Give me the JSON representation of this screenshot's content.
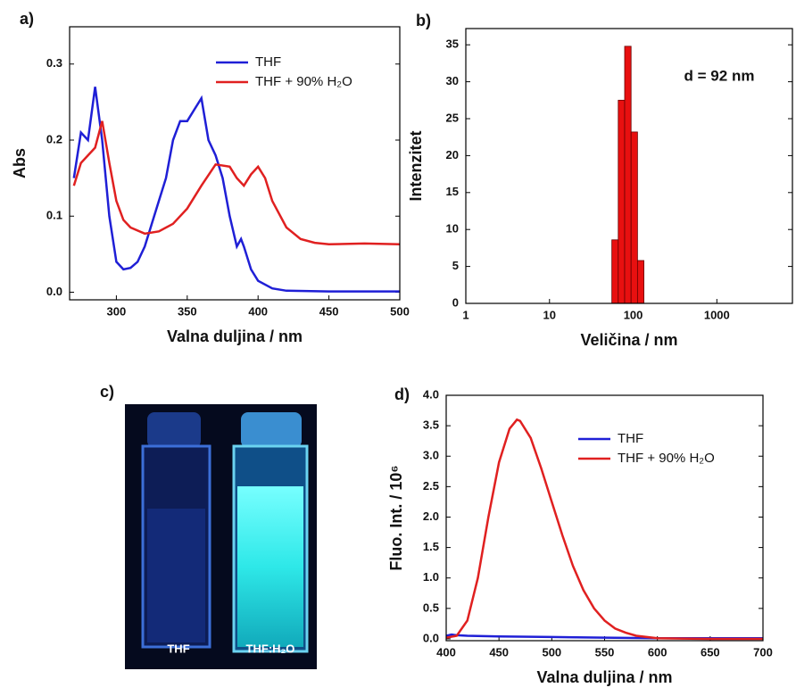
{
  "chart_data": [
    {
      "type": "line",
      "panel_label": "a)",
      "x_label": "Valna duljina / nm",
      "y_label": "Abs",
      "xlim": [
        267,
        500
      ],
      "ylim": [
        -0.01,
        0.349
      ],
      "xticks": [
        300,
        350,
        400,
        450,
        500
      ],
      "yticks": [
        {
          "value": 0,
          "label": "0.0"
        },
        0.1,
        0.2,
        0.3
      ],
      "series": [
        {
          "name": "THF",
          "color": "#1f1fd6",
          "x": [
            270,
            275,
            280,
            285,
            290,
            295,
            300,
            305,
            310,
            315,
            320,
            325,
            330,
            335,
            340,
            345,
            350,
            355,
            360,
            365,
            370,
            375,
            380,
            385,
            388,
            390,
            395,
            400,
            410,
            420,
            450,
            500
          ],
          "values": [
            0.15,
            0.21,
            0.2,
            0.27,
            0.2,
            0.1,
            0.04,
            0.03,
            0.032,
            0.04,
            0.06,
            0.09,
            0.12,
            0.15,
            0.2,
            0.225,
            0.225,
            0.24,
            0.255,
            0.2,
            0.18,
            0.15,
            0.1,
            0.06,
            0.07,
            0.06,
            0.03,
            0.015,
            0.005,
            0.002,
            0.001,
            0.001
          ]
        },
        {
          "name": "THF + 90% H₂O",
          "color": "#e02020",
          "x": [
            270,
            275,
            280,
            285,
            290,
            295,
            300,
            305,
            310,
            320,
            330,
            340,
            350,
            360,
            370,
            380,
            385,
            390,
            395,
            400,
            405,
            410,
            420,
            430,
            440,
            450,
            475,
            500
          ],
          "values": [
            0.14,
            0.17,
            0.18,
            0.19,
            0.225,
            0.17,
            0.12,
            0.095,
            0.085,
            0.077,
            0.08,
            0.09,
            0.11,
            0.14,
            0.168,
            0.165,
            0.15,
            0.14,
            0.155,
            0.165,
            0.15,
            0.12,
            0.085,
            0.07,
            0.065,
            0.063,
            0.064,
            0.063
          ]
        }
      ]
    },
    {
      "type": "histogram",
      "panel_label": "b)",
      "x_label": "Veličina / nm",
      "y_label": "Intenzitet",
      "annotation": "d = 92 nm",
      "log_x": true,
      "xlim": [
        1,
        8000
      ],
      "ylim": [
        0,
        37.2
      ],
      "xticks": [
        1,
        10,
        100,
        1000
      ],
      "yticks": [
        0,
        5,
        10,
        15,
        20,
        25,
        30,
        35
      ],
      "color": "#e81010",
      "bins": [
        55.6,
        66.3,
        79.1,
        94.4,
        112.6,
        134.3
      ],
      "values": [
        8.6,
        27.5,
        34.8,
        23.2,
        5.8
      ]
    },
    {
      "type": "line",
      "panel_label": "d)",
      "x_label": "Valna duljina / nm",
      "y_label": "Fluo. Int. / 10⁶",
      "xlim": [
        400,
        700
      ],
      "ylim": [
        -0.03,
        4.0
      ],
      "xticks": [
        400,
        450,
        500,
        550,
        600,
        650,
        700
      ],
      "yticks": [
        {
          "value": 0,
          "label": "0.0"
        },
        0.5,
        {
          "value": 1,
          "label": "1.0"
        },
        1.5,
        {
          "value": 2,
          "label": "2.0"
        },
        2.5,
        {
          "value": 3,
          "label": "3.0"
        },
        3.5,
        {
          "value": 4,
          "label": "4.0"
        }
      ],
      "series": [
        {
          "name": "THF",
          "color": "#1f1fd6",
          "x": [
            400,
            405,
            410,
            420,
            450,
            500,
            550,
            600,
            650,
            700
          ],
          "values": [
            0.05,
            0.07,
            0.06,
            0.05,
            0.04,
            0.03,
            0.02,
            0.01,
            0.01,
            0.01
          ]
        },
        {
          "name": "THF + 90% H₂O",
          "color": "#e02020",
          "x": [
            400,
            410,
            420,
            430,
            440,
            450,
            460,
            467,
            470,
            480,
            490,
            500,
            510,
            520,
            530,
            540,
            550,
            560,
            570,
            580,
            590,
            600,
            650,
            700
          ],
          "values": [
            0.02,
            0.05,
            0.3,
            1.0,
            2.0,
            2.9,
            3.45,
            3.6,
            3.58,
            3.3,
            2.8,
            2.25,
            1.7,
            1.2,
            0.8,
            0.5,
            0.3,
            0.17,
            0.1,
            0.05,
            0.03,
            0.01,
            0,
            0
          ]
        }
      ]
    }
  ],
  "photo": {
    "panel_label": "c)",
    "captions": [
      "THF",
      "THF:H₂O"
    ]
  }
}
